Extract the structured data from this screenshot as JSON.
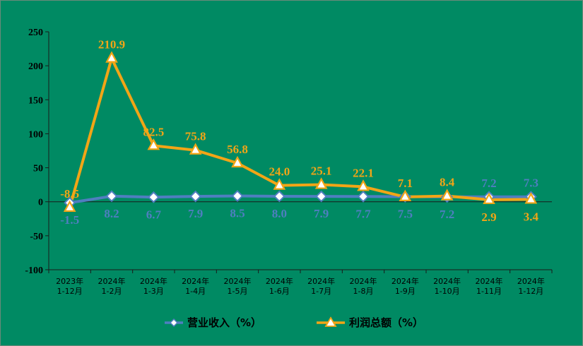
{
  "chart_data": {
    "type": "line",
    "categories": [
      "2023年\n1-12月",
      "2024年\n1-2月",
      "2024年\n1-3月",
      "2024年\n1-4月",
      "2024年\n1-5月",
      "2024年\n1-6月",
      "2024年\n1-7月",
      "2024年\n1-8月",
      "2024年\n1-9月",
      "2024年\n1-10月",
      "2024年\n1-11月",
      "2024年\n1-12月"
    ],
    "series": [
      {
        "name": "营业收入（%）",
        "values": [
          -1.5,
          8.2,
          6.7,
          7.9,
          8.5,
          8.0,
          7.9,
          7.7,
          7.5,
          7.2,
          7.2,
          7.3
        ],
        "labels": [
          "-1.5",
          "8.2",
          "6.7",
          "7.9",
          "8.5",
          "8.0",
          "7.9",
          "7.7",
          "7.5",
          "7.2",
          "7.2",
          "7.3"
        ],
        "label_pos": [
          "below",
          "below",
          "below",
          "below",
          "below",
          "below",
          "below",
          "below",
          "below",
          "below",
          "above",
          "above"
        ],
        "color": "#4f7ec0",
        "marker": "diamond"
      },
      {
        "name": "利润总额（%）",
        "values": [
          -8.5,
          210.9,
          82.5,
          75.8,
          56.8,
          24.0,
          25.1,
          22.1,
          7.1,
          8.4,
          2.9,
          3.4
        ],
        "labels": [
          "-8.5",
          "210.9",
          "82.5",
          "75.8",
          "56.8",
          "24.0",
          "25.1",
          "22.1",
          "7.1",
          "8.4",
          "2.9",
          "3.4"
        ],
        "label_pos": [
          "above",
          "above",
          "above",
          "above",
          "above",
          "above",
          "above",
          "above",
          "above",
          "above",
          "below",
          "below"
        ],
        "color": "#f2a516",
        "marker": "triangle"
      }
    ],
    "ylim": [
      -100,
      250
    ],
    "yticks": [
      -100,
      -50,
      0,
      50,
      100,
      150,
      200,
      250
    ],
    "grid": false,
    "legend_position": "bottom"
  },
  "colors": {
    "background": "#008a63",
    "axis": "#1a1a1a"
  }
}
